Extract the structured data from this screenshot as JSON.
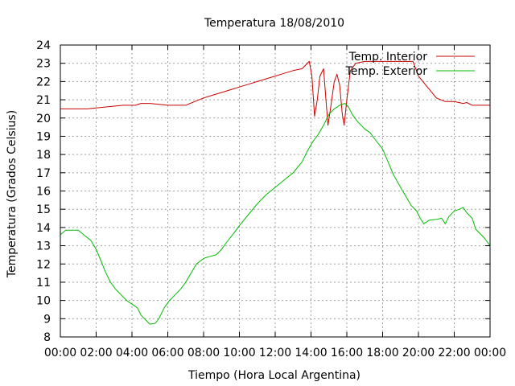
{
  "chart_data": {
    "type": "line",
    "title": "Temperatura 18/08/2010",
    "xlabel": "Tiempo (Hora Local Argentina)",
    "ylabel": "Temperatura (Grados Celsius)",
    "xlim": [
      0,
      24
    ],
    "ylim": [
      8,
      24
    ],
    "x_ticks": [
      "00:00",
      "02:00",
      "04:00",
      "06:00",
      "08:00",
      "10:00",
      "12:00",
      "14:00",
      "16:00",
      "18:00",
      "20:00",
      "22:00",
      "00:00"
    ],
    "y_ticks": [
      "8",
      "9",
      "10",
      "11",
      "12",
      "13",
      "14",
      "15",
      "16",
      "17",
      "18",
      "19",
      "20",
      "21",
      "22",
      "23",
      "24"
    ],
    "grid": true,
    "legend_position": "top-right",
    "series": [
      {
        "name": "Temp. Interior",
        "color": "#cc0000",
        "points": [
          [
            0,
            20.5
          ],
          [
            1.5,
            20.5
          ],
          [
            2.0,
            20.55
          ],
          [
            2.5,
            20.6
          ],
          [
            3.0,
            20.65
          ],
          [
            3.5,
            20.7
          ],
          [
            4.2,
            20.7
          ],
          [
            4.5,
            20.8
          ],
          [
            5.0,
            20.8
          ],
          [
            5.5,
            20.75
          ],
          [
            6.0,
            20.7
          ],
          [
            6.5,
            20.7
          ],
          [
            7.0,
            20.7
          ],
          [
            7.5,
            20.9
          ],
          [
            8.0,
            21.1
          ],
          [
            8.5,
            21.25
          ],
          [
            9.0,
            21.4
          ],
          [
            9.5,
            21.55
          ],
          [
            10.0,
            21.7
          ],
          [
            10.5,
            21.85
          ],
          [
            11.0,
            22.0
          ],
          [
            11.5,
            22.15
          ],
          [
            12.0,
            22.3
          ],
          [
            12.5,
            22.45
          ],
          [
            13.0,
            22.6
          ],
          [
            13.5,
            22.7
          ],
          [
            13.9,
            23.1
          ],
          [
            14.05,
            22.3
          ],
          [
            14.2,
            20.1
          ],
          [
            14.35,
            21.0
          ],
          [
            14.5,
            22.3
          ],
          [
            14.7,
            22.7
          ],
          [
            14.85,
            20.8
          ],
          [
            14.95,
            19.6
          ],
          [
            15.1,
            20.6
          ],
          [
            15.3,
            22.0
          ],
          [
            15.45,
            22.4
          ],
          [
            15.6,
            21.8
          ],
          [
            15.75,
            20.2
          ],
          [
            15.85,
            19.6
          ],
          [
            16.0,
            21.0
          ],
          [
            16.2,
            22.6
          ],
          [
            16.5,
            23.0
          ],
          [
            17.0,
            23.1
          ],
          [
            18.0,
            23.1
          ],
          [
            19.0,
            23.1
          ],
          [
            19.7,
            23.1
          ],
          [
            20.0,
            22.3
          ],
          [
            20.5,
            21.7
          ],
          [
            21.0,
            21.1
          ],
          [
            21.5,
            20.9
          ],
          [
            22.0,
            20.9
          ],
          [
            22.5,
            20.8
          ],
          [
            22.7,
            20.85
          ],
          [
            23.0,
            20.7
          ],
          [
            24.0,
            20.7
          ]
        ]
      },
      {
        "name": "Temp. Exterior",
        "color": "#00bb00",
        "points": [
          [
            0,
            13.6
          ],
          [
            0.3,
            13.85
          ],
          [
            0.7,
            13.85
          ],
          [
            1.0,
            13.85
          ],
          [
            1.3,
            13.6
          ],
          [
            1.7,
            13.3
          ],
          [
            2.0,
            12.8
          ],
          [
            2.3,
            12.1
          ],
          [
            2.5,
            11.6
          ],
          [
            2.8,
            11.0
          ],
          [
            3.1,
            10.6
          ],
          [
            3.4,
            10.3
          ],
          [
            3.7,
            10.0
          ],
          [
            4.0,
            9.8
          ],
          [
            4.3,
            9.6
          ],
          [
            4.5,
            9.2
          ],
          [
            4.8,
            8.9
          ],
          [
            5.0,
            8.7
          ],
          [
            5.3,
            8.75
          ],
          [
            5.5,
            9.0
          ],
          [
            5.8,
            9.6
          ],
          [
            6.1,
            10.0
          ],
          [
            6.4,
            10.3
          ],
          [
            6.7,
            10.6
          ],
          [
            7.0,
            11.0
          ],
          [
            7.3,
            11.5
          ],
          [
            7.6,
            12.0
          ],
          [
            8.0,
            12.3
          ],
          [
            8.3,
            12.4
          ],
          [
            8.7,
            12.5
          ],
          [
            9.0,
            12.8
          ],
          [
            9.3,
            13.2
          ],
          [
            9.7,
            13.7
          ],
          [
            10.0,
            14.1
          ],
          [
            10.5,
            14.7
          ],
          [
            11.0,
            15.3
          ],
          [
            11.5,
            15.8
          ],
          [
            12.0,
            16.2
          ],
          [
            12.5,
            16.6
          ],
          [
            13.0,
            17.0
          ],
          [
            13.5,
            17.6
          ],
          [
            13.8,
            18.2
          ],
          [
            14.1,
            18.7
          ],
          [
            14.4,
            19.1
          ],
          [
            14.7,
            19.6
          ],
          [
            15.0,
            20.2
          ],
          [
            15.3,
            20.5
          ],
          [
            15.6,
            20.7
          ],
          [
            15.9,
            20.8
          ],
          [
            16.1,
            20.6
          ],
          [
            16.3,
            20.2
          ],
          [
            16.6,
            19.8
          ],
          [
            17.0,
            19.4
          ],
          [
            17.3,
            19.2
          ],
          [
            17.6,
            18.8
          ],
          [
            18.0,
            18.3
          ],
          [
            18.3,
            17.6
          ],
          [
            18.6,
            16.9
          ],
          [
            19.0,
            16.2
          ],
          [
            19.3,
            15.7
          ],
          [
            19.6,
            15.2
          ],
          [
            19.9,
            14.9
          ],
          [
            20.1,
            14.5
          ],
          [
            20.3,
            14.2
          ],
          [
            20.6,
            14.4
          ],
          [
            21.0,
            14.45
          ],
          [
            21.3,
            14.5
          ],
          [
            21.5,
            14.2
          ],
          [
            21.7,
            14.6
          ],
          [
            22.0,
            14.9
          ],
          [
            22.3,
            15.0
          ],
          [
            22.5,
            15.1
          ],
          [
            22.7,
            14.8
          ],
          [
            23.0,
            14.5
          ],
          [
            23.2,
            13.9
          ],
          [
            23.5,
            13.6
          ],
          [
            23.7,
            13.4
          ],
          [
            23.85,
            13.2
          ],
          [
            24.0,
            13.0
          ]
        ]
      }
    ]
  }
}
